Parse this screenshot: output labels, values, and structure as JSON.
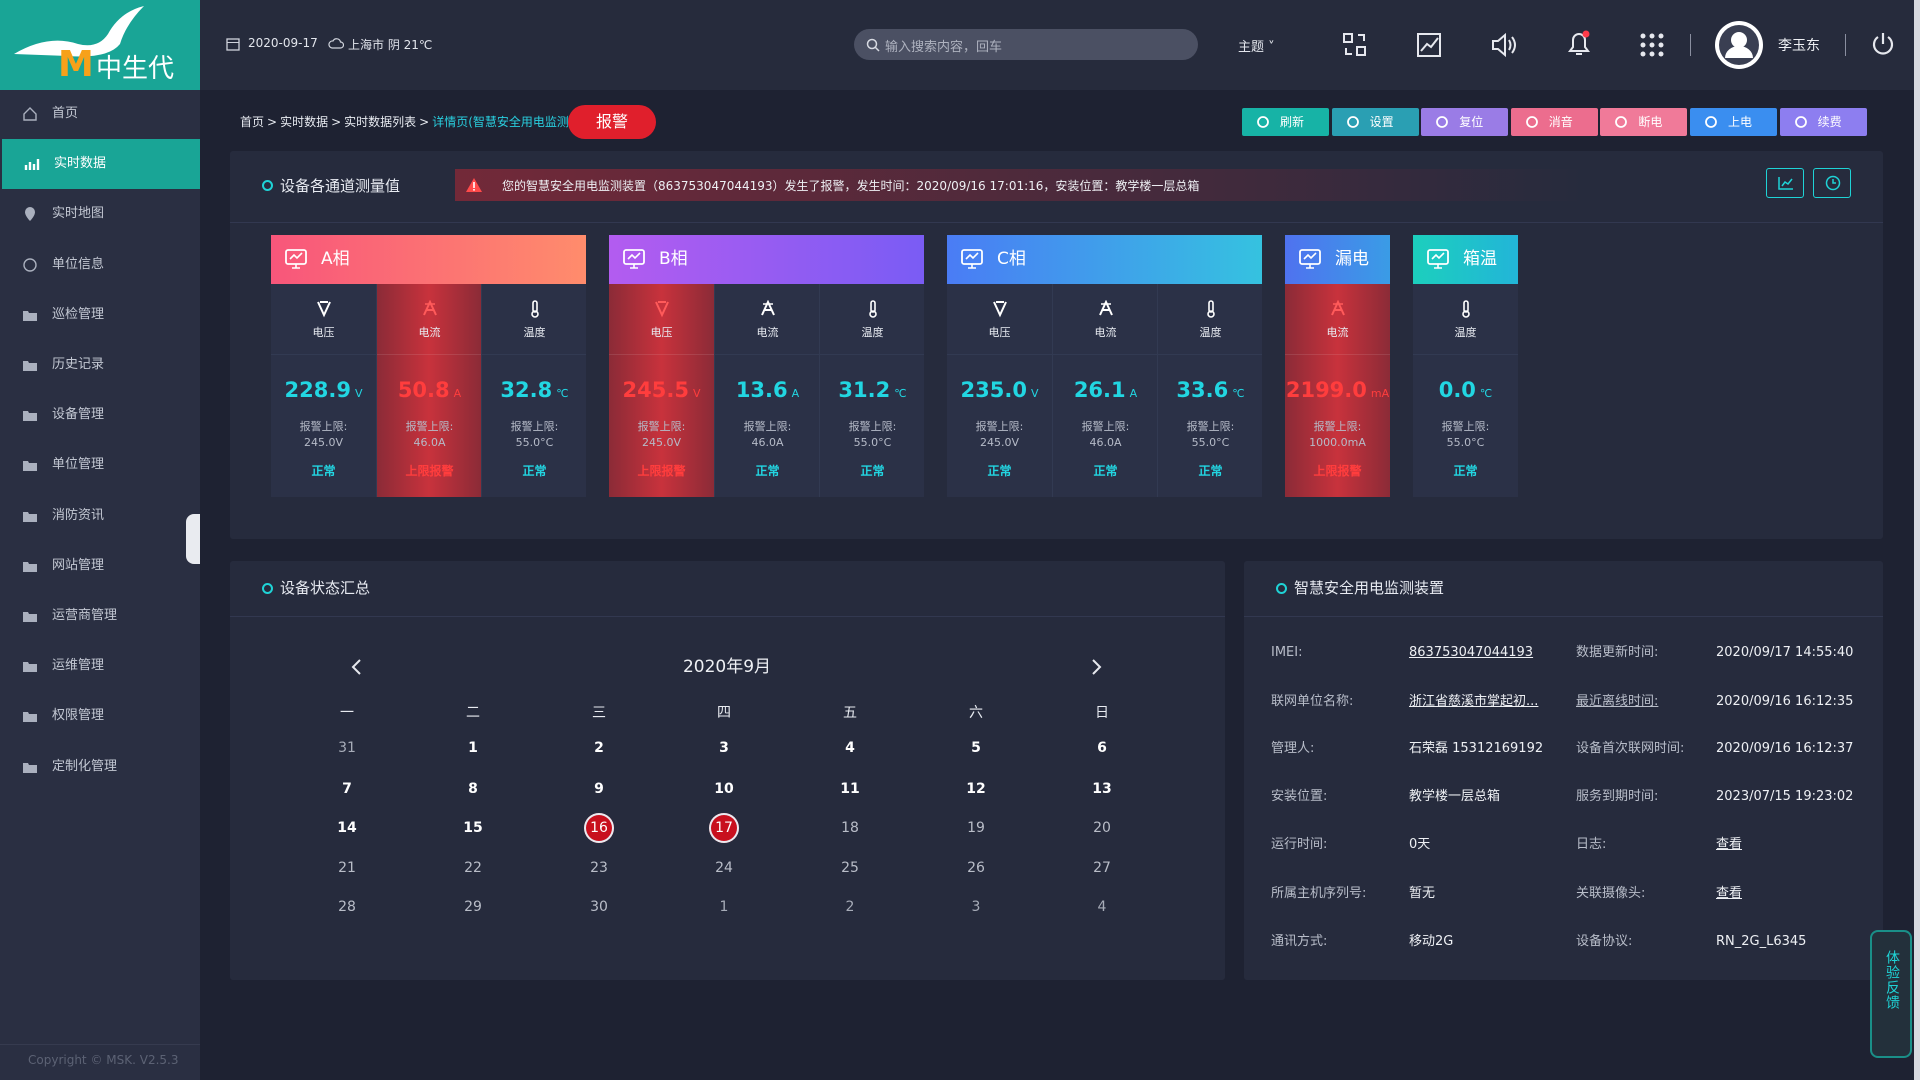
{
  "sidebar": {
    "logo": {
      "mark": "M",
      "text": "中生代"
    },
    "menu": [
      "首页",
      "实时数据",
      "实时地图",
      "单位信息",
      "巡检管理",
      "历史记录",
      "设备管理",
      "单位管理",
      "消防资讯",
      "网站管理",
      "运营商管理",
      "运维管理",
      "权限管理",
      "定制化管理"
    ],
    "copyright": "Copyright © MSK. V2.5.3"
  },
  "header": {
    "date": "2020-09-17",
    "weather": "上海市 阴 21℃",
    "search_placeholder": "输入搜索内容，回车",
    "theme": "主题",
    "user": "李玉东"
  },
  "breadcrumb": {
    "items": [
      "首页",
      "实时数据",
      "实时数据列表",
      "详情页(智慧安全用电监测装"
    ],
    "separator": ">",
    "alarm": "报警"
  },
  "toolbar": [
    {
      "label": "刷新",
      "color": "#17b3a6"
    },
    {
      "label": "设置",
      "color": "#2a9fb3"
    },
    {
      "label": "复位",
      "color": "#9a7ce6"
    },
    {
      "label": "消音",
      "color": "#ec6d8e"
    },
    {
      "label": "断电",
      "color": "#f07a99"
    },
    {
      "label": "上电",
      "color": "#3a8ef0"
    },
    {
      "label": "续费",
      "color": "#8d7ef0"
    }
  ],
  "measure_panel": {
    "title": "设备各通道测量值",
    "alert": "您的智慧安全用电监测装置（863753047044193）发生了报警，发生时间：2020/09/16 17:01:16，安装位置：教学楼一层总箱",
    "cards": [
      {
        "title": "A相",
        "color": [
          "#f8567b",
          "#ff8c6c"
        ],
        "channels": [
          {
            "icon": "voltage",
            "label": "电压",
            "value": "228.9",
            "unit": "V",
            "limit_label": "报警上限:",
            "limit": "245.0V",
            "status": "正常",
            "alarm": false
          },
          {
            "icon": "current",
            "label": "电流",
            "value": "50.8",
            "unit": "A",
            "limit_label": "报警上限:",
            "limit": "46.0A",
            "status": "上限报警",
            "alarm": true
          },
          {
            "icon": "temp",
            "label": "温度",
            "value": "32.8",
            "unit": "℃",
            "limit_label": "报警上限:",
            "limit": "55.0°C",
            "status": "正常",
            "alarm": false
          }
        ]
      },
      {
        "title": "B相",
        "color": [
          "#b35cf0",
          "#7a5cf4"
        ],
        "channels": [
          {
            "icon": "voltage",
            "label": "电压",
            "value": "245.5",
            "unit": "V",
            "limit_label": "报警上限:",
            "limit": "245.0V",
            "status": "上限报警",
            "alarm": true
          },
          {
            "icon": "current",
            "label": "电流",
            "value": "13.6",
            "unit": "A",
            "limit_label": "报警上限:",
            "limit": "46.0A",
            "status": "正常",
            "alarm": false
          },
          {
            "icon": "temp",
            "label": "温度",
            "value": "31.2",
            "unit": "℃",
            "limit_label": "报警上限:",
            "limit": "55.0°C",
            "status": "正常",
            "alarm": false
          }
        ]
      },
      {
        "title": "C相",
        "color": [
          "#4a7cf5",
          "#35c2e0"
        ],
        "channels": [
          {
            "icon": "voltage",
            "label": "电压",
            "value": "235.0",
            "unit": "V",
            "limit_label": "报警上限:",
            "limit": "245.0V",
            "status": "正常",
            "alarm": false
          },
          {
            "icon": "current",
            "label": "电流",
            "value": "26.1",
            "unit": "A",
            "limit_label": "报警上限:",
            "limit": "46.0A",
            "status": "正常",
            "alarm": false
          },
          {
            "icon": "temp",
            "label": "温度",
            "value": "33.6",
            "unit": "℃",
            "limit_label": "报警上限:",
            "limit": "55.0°C",
            "status": "正常",
            "alarm": false
          }
        ]
      },
      {
        "title": "漏电",
        "color": [
          "#4f72ef",
          "#3a9ce6"
        ],
        "channels": [
          {
            "icon": "current",
            "label": "电流",
            "value": "2199.0",
            "unit": "mA",
            "limit_label": "报警上限:",
            "limit": "1000.0mA",
            "status": "上限报警",
            "alarm": true
          }
        ]
      },
      {
        "title": "箱温",
        "color": [
          "#1ccfbd",
          "#22b5d8"
        ],
        "channels": [
          {
            "icon": "temp",
            "label": "温度",
            "value": "0.0",
            "unit": "℃",
            "limit_label": "报警上限:",
            "limit": "55.0°C",
            "status": "正常",
            "alarm": false
          }
        ]
      }
    ]
  },
  "calendar": {
    "title": "设备状态汇总",
    "month": "2020年9月",
    "weekdays": [
      "一",
      "二",
      "三",
      "四",
      "五",
      "六",
      "日"
    ],
    "weeks": [
      [
        "31",
        "1",
        "2",
        "3",
        "4",
        "5",
        "6"
      ],
      [
        "7",
        "8",
        "9",
        "10",
        "11",
        "12",
        "13"
      ],
      [
        "14",
        "15",
        "16",
        "17",
        "18",
        "19",
        "20"
      ],
      [
        "21",
        "22",
        "23",
        "24",
        "25",
        "26",
        "27"
      ],
      [
        "28",
        "29",
        "30",
        "1",
        "2",
        "3",
        "4"
      ]
    ]
  },
  "device_panel": {
    "title": "智慧安全用电监测装置",
    "left": [
      {
        "label": "IMEI:",
        "value": "863753047044193",
        "link": true
      },
      {
        "label": "联网单位名称:",
        "value": "浙江省慈溪市掌起初...",
        "link": true
      },
      {
        "label": "管理人:",
        "value": "石荣磊 15312169192",
        "link": false
      },
      {
        "label": "安装位置:",
        "value": "教学楼一层总箱",
        "link": false
      },
      {
        "label": "运行时间:",
        "value": "0天",
        "link": false
      },
      {
        "label": "所属主机序列号:",
        "value": "暂无",
        "link": false
      },
      {
        "label": "通讯方式:",
        "value": "移动2G",
        "link": false
      }
    ],
    "right": [
      {
        "label": "数据更新时间:",
        "value": "2020/09/17 14:55:40",
        "link": false
      },
      {
        "label": "最近离线时间:",
        "value": "2020/09/16 16:12:35",
        "link": false,
        "label_link": true
      },
      {
        "label": "设备首次联网时间:",
        "value": "2020/09/16 16:12:37",
        "link": false
      },
      {
        "label": "服务到期时间:",
        "value": "2023/07/15 19:23:02",
        "link": false
      },
      {
        "label": "日志:",
        "value": "查看",
        "link": true
      },
      {
        "label": "关联摄像头:",
        "value": "查看",
        "link": true
      },
      {
        "label": "设备协议:",
        "value": "RN_2G_L6345",
        "link": false
      }
    ]
  },
  "feedback": "体验反馈"
}
